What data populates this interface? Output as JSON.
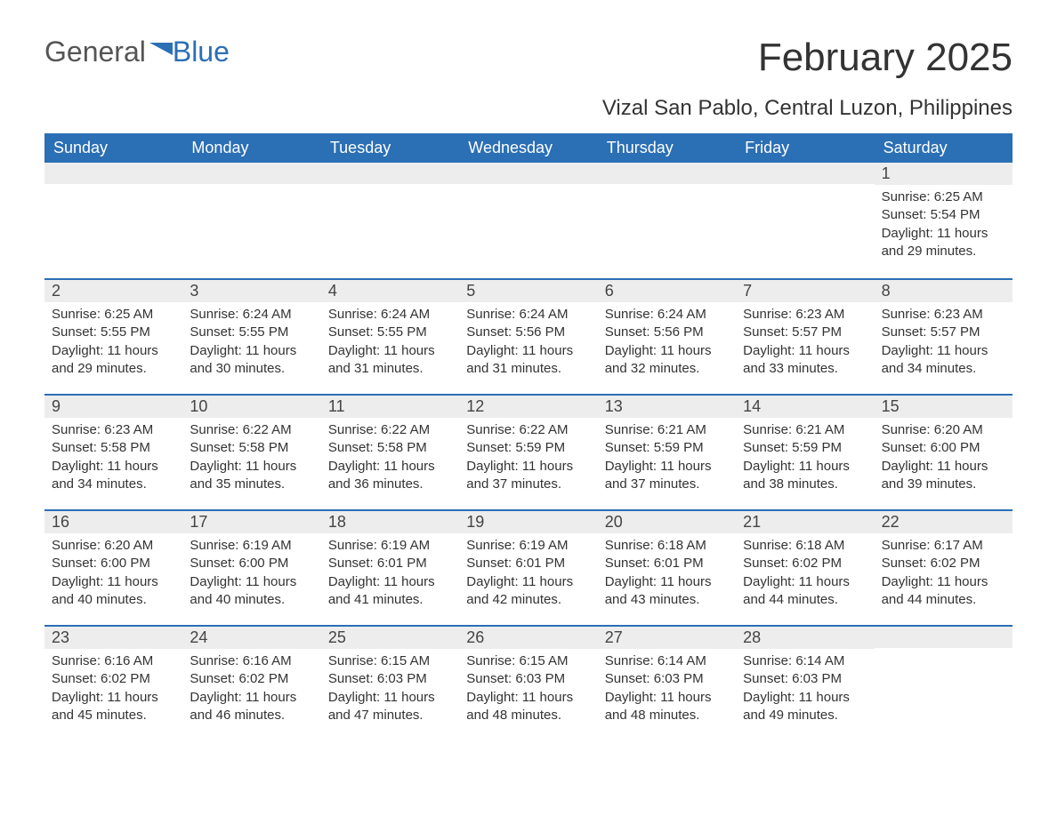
{
  "logo": {
    "text_general": "General",
    "text_blue": "Blue"
  },
  "header": {
    "month_title": "February 2025",
    "location": "Vizal San Pablo, Central Luzon, Philippines"
  },
  "colors": {
    "header_bar": "#2b6fb5",
    "band": "#ededed",
    "text": "#333333",
    "background": "#ffffff"
  },
  "weekdays": [
    "Sunday",
    "Monday",
    "Tuesday",
    "Wednesday",
    "Thursday",
    "Friday",
    "Saturday"
  ],
  "weeks": [
    [
      {
        "day": "",
        "sunrise": "",
        "sunset": "",
        "daylight": ""
      },
      {
        "day": "",
        "sunrise": "",
        "sunset": "",
        "daylight": ""
      },
      {
        "day": "",
        "sunrise": "",
        "sunset": "",
        "daylight": ""
      },
      {
        "day": "",
        "sunrise": "",
        "sunset": "",
        "daylight": ""
      },
      {
        "day": "",
        "sunrise": "",
        "sunset": "",
        "daylight": ""
      },
      {
        "day": "",
        "sunrise": "",
        "sunset": "",
        "daylight": ""
      },
      {
        "day": "1",
        "sunrise": "Sunrise: 6:25 AM",
        "sunset": "Sunset: 5:54 PM",
        "daylight": "Daylight: 11 hours and 29 minutes."
      }
    ],
    [
      {
        "day": "2",
        "sunrise": "Sunrise: 6:25 AM",
        "sunset": "Sunset: 5:55 PM",
        "daylight": "Daylight: 11 hours and 29 minutes."
      },
      {
        "day": "3",
        "sunrise": "Sunrise: 6:24 AM",
        "sunset": "Sunset: 5:55 PM",
        "daylight": "Daylight: 11 hours and 30 minutes."
      },
      {
        "day": "4",
        "sunrise": "Sunrise: 6:24 AM",
        "sunset": "Sunset: 5:55 PM",
        "daylight": "Daylight: 11 hours and 31 minutes."
      },
      {
        "day": "5",
        "sunrise": "Sunrise: 6:24 AM",
        "sunset": "Sunset: 5:56 PM",
        "daylight": "Daylight: 11 hours and 31 minutes."
      },
      {
        "day": "6",
        "sunrise": "Sunrise: 6:24 AM",
        "sunset": "Sunset: 5:56 PM",
        "daylight": "Daylight: 11 hours and 32 minutes."
      },
      {
        "day": "7",
        "sunrise": "Sunrise: 6:23 AM",
        "sunset": "Sunset: 5:57 PM",
        "daylight": "Daylight: 11 hours and 33 minutes."
      },
      {
        "day": "8",
        "sunrise": "Sunrise: 6:23 AM",
        "sunset": "Sunset: 5:57 PM",
        "daylight": "Daylight: 11 hours and 34 minutes."
      }
    ],
    [
      {
        "day": "9",
        "sunrise": "Sunrise: 6:23 AM",
        "sunset": "Sunset: 5:58 PM",
        "daylight": "Daylight: 11 hours and 34 minutes."
      },
      {
        "day": "10",
        "sunrise": "Sunrise: 6:22 AM",
        "sunset": "Sunset: 5:58 PM",
        "daylight": "Daylight: 11 hours and 35 minutes."
      },
      {
        "day": "11",
        "sunrise": "Sunrise: 6:22 AM",
        "sunset": "Sunset: 5:58 PM",
        "daylight": "Daylight: 11 hours and 36 minutes."
      },
      {
        "day": "12",
        "sunrise": "Sunrise: 6:22 AM",
        "sunset": "Sunset: 5:59 PM",
        "daylight": "Daylight: 11 hours and 37 minutes."
      },
      {
        "day": "13",
        "sunrise": "Sunrise: 6:21 AM",
        "sunset": "Sunset: 5:59 PM",
        "daylight": "Daylight: 11 hours and 37 minutes."
      },
      {
        "day": "14",
        "sunrise": "Sunrise: 6:21 AM",
        "sunset": "Sunset: 5:59 PM",
        "daylight": "Daylight: 11 hours and 38 minutes."
      },
      {
        "day": "15",
        "sunrise": "Sunrise: 6:20 AM",
        "sunset": "Sunset: 6:00 PM",
        "daylight": "Daylight: 11 hours and 39 minutes."
      }
    ],
    [
      {
        "day": "16",
        "sunrise": "Sunrise: 6:20 AM",
        "sunset": "Sunset: 6:00 PM",
        "daylight": "Daylight: 11 hours and 40 minutes."
      },
      {
        "day": "17",
        "sunrise": "Sunrise: 6:19 AM",
        "sunset": "Sunset: 6:00 PM",
        "daylight": "Daylight: 11 hours and 40 minutes."
      },
      {
        "day": "18",
        "sunrise": "Sunrise: 6:19 AM",
        "sunset": "Sunset: 6:01 PM",
        "daylight": "Daylight: 11 hours and 41 minutes."
      },
      {
        "day": "19",
        "sunrise": "Sunrise: 6:19 AM",
        "sunset": "Sunset: 6:01 PM",
        "daylight": "Daylight: 11 hours and 42 minutes."
      },
      {
        "day": "20",
        "sunrise": "Sunrise: 6:18 AM",
        "sunset": "Sunset: 6:01 PM",
        "daylight": "Daylight: 11 hours and 43 minutes."
      },
      {
        "day": "21",
        "sunrise": "Sunrise: 6:18 AM",
        "sunset": "Sunset: 6:02 PM",
        "daylight": "Daylight: 11 hours and 44 minutes."
      },
      {
        "day": "22",
        "sunrise": "Sunrise: 6:17 AM",
        "sunset": "Sunset: 6:02 PM",
        "daylight": "Daylight: 11 hours and 44 minutes."
      }
    ],
    [
      {
        "day": "23",
        "sunrise": "Sunrise: 6:16 AM",
        "sunset": "Sunset: 6:02 PM",
        "daylight": "Daylight: 11 hours and 45 minutes."
      },
      {
        "day": "24",
        "sunrise": "Sunrise: 6:16 AM",
        "sunset": "Sunset: 6:02 PM",
        "daylight": "Daylight: 11 hours and 46 minutes."
      },
      {
        "day": "25",
        "sunrise": "Sunrise: 6:15 AM",
        "sunset": "Sunset: 6:03 PM",
        "daylight": "Daylight: 11 hours and 47 minutes."
      },
      {
        "day": "26",
        "sunrise": "Sunrise: 6:15 AM",
        "sunset": "Sunset: 6:03 PM",
        "daylight": "Daylight: 11 hours and 48 minutes."
      },
      {
        "day": "27",
        "sunrise": "Sunrise: 6:14 AM",
        "sunset": "Sunset: 6:03 PM",
        "daylight": "Daylight: 11 hours and 48 minutes."
      },
      {
        "day": "28",
        "sunrise": "Sunrise: 6:14 AM",
        "sunset": "Sunset: 6:03 PM",
        "daylight": "Daylight: 11 hours and 49 minutes."
      },
      {
        "day": "",
        "sunrise": "",
        "sunset": "",
        "daylight": ""
      }
    ]
  ]
}
